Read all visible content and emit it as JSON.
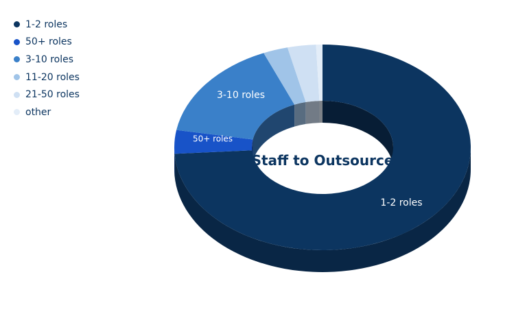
{
  "chart_data": {
    "type": "pie",
    "variant": "donut-3d",
    "title": "Staff to Outsource",
    "legend_position": "top-left",
    "slices": [
      {
        "label": "1-2 roles",
        "value": 74.0,
        "color": "#0c3560",
        "data_label": "1-2 roles"
      },
      {
        "label": "50+ roles",
        "value": 3.7,
        "color": "#1853c8",
        "data_label": "50+ roles"
      },
      {
        "label": "3-10 roles",
        "value": 15.8,
        "color": "#3a80c9",
        "data_label": "3-10 roles"
      },
      {
        "label": "11-20 roles",
        "value": 2.7,
        "color": "#a0c4e8",
        "data_label": ""
      },
      {
        "label": "21-50 roles",
        "value": 3.1,
        "color": "#cfe0f3",
        "data_label": ""
      },
      {
        "label": "other",
        "value": 0.7,
        "color": "#e3edf8",
        "data_label": ""
      }
    ]
  }
}
